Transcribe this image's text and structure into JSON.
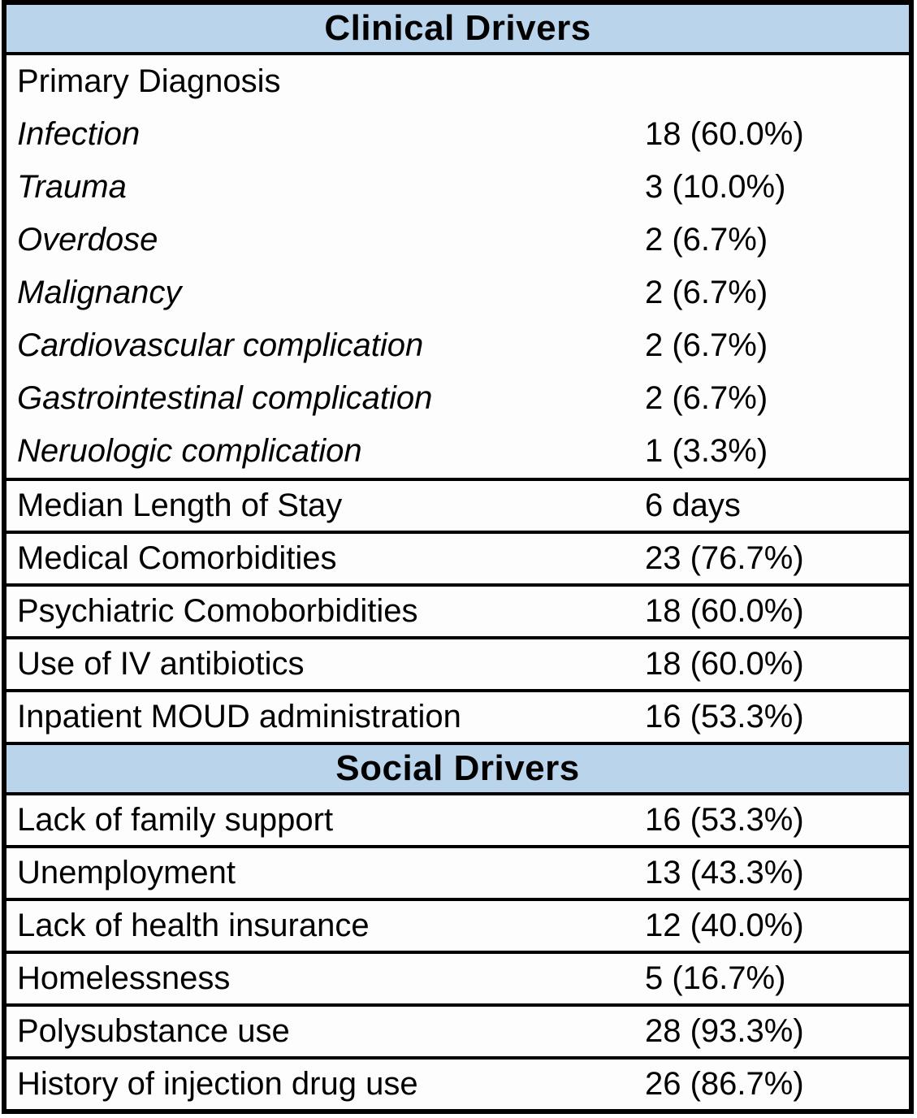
{
  "table": {
    "header_bg_color": "#BAD4EB",
    "border_color": "#000000",
    "sections": [
      {
        "title": "Clinical Drivers",
        "blocks": [
          {
            "type": "group",
            "rows": [
              {
                "label": "Primary Diagnosis",
                "value": "",
                "italic": false
              },
              {
                "label": "Infection",
                "value": "18 (60.0%)",
                "italic": true
              },
              {
                "label": "Trauma",
                "value": "3 (10.0%)",
                "italic": true
              },
              {
                "label": "Overdose",
                "value": "2 (6.7%)",
                "italic": true
              },
              {
                "label": "Malignancy",
                "value": "2 (6.7%)",
                "italic": true
              },
              {
                "label": "Cardiovascular complication",
                "value": "2 (6.7%)",
                "italic": true
              },
              {
                "label": "Gastrointestinal complication",
                "value": "2 (6.7%)",
                "italic": true
              },
              {
                "label": "Neruologic complication",
                "value": "1 (3.3%)",
                "italic": true
              }
            ]
          },
          {
            "type": "row",
            "label": "Median Length of Stay",
            "value": "6 days",
            "italic": false
          },
          {
            "type": "row",
            "label": "Medical Comorbidities",
            "value": "23 (76.7%)",
            "italic": false
          },
          {
            "type": "row",
            "label": "Psychiatric Comoborbidities",
            "value": "18 (60.0%)",
            "italic": false
          },
          {
            "type": "row",
            "label": "Use of IV antibiotics",
            "value": "18 (60.0%)",
            "italic": false
          },
          {
            "type": "row",
            "label": "Inpatient MOUD administration",
            "value": "16 (53.3%)",
            "italic": false
          }
        ]
      },
      {
        "title": "Social Drivers",
        "blocks": [
          {
            "type": "row",
            "label": "Lack of family support",
            "value": "16 (53.3%)",
            "italic": false
          },
          {
            "type": "row",
            "label": "Unemployment",
            "value": "13 (43.3%)",
            "italic": false
          },
          {
            "type": "row",
            "label": "Lack of health insurance",
            "value": "12 (40.0%)",
            "italic": false
          },
          {
            "type": "row",
            "label": "Homelessness",
            "value": "5 (16.7%)",
            "italic": false
          },
          {
            "type": "row",
            "label": "Polysubstance use",
            "value": "28 (93.3%)",
            "italic": false
          },
          {
            "type": "row",
            "label": "History of injection drug use",
            "value": "26 (86.7%)",
            "italic": false
          }
        ]
      }
    ]
  }
}
